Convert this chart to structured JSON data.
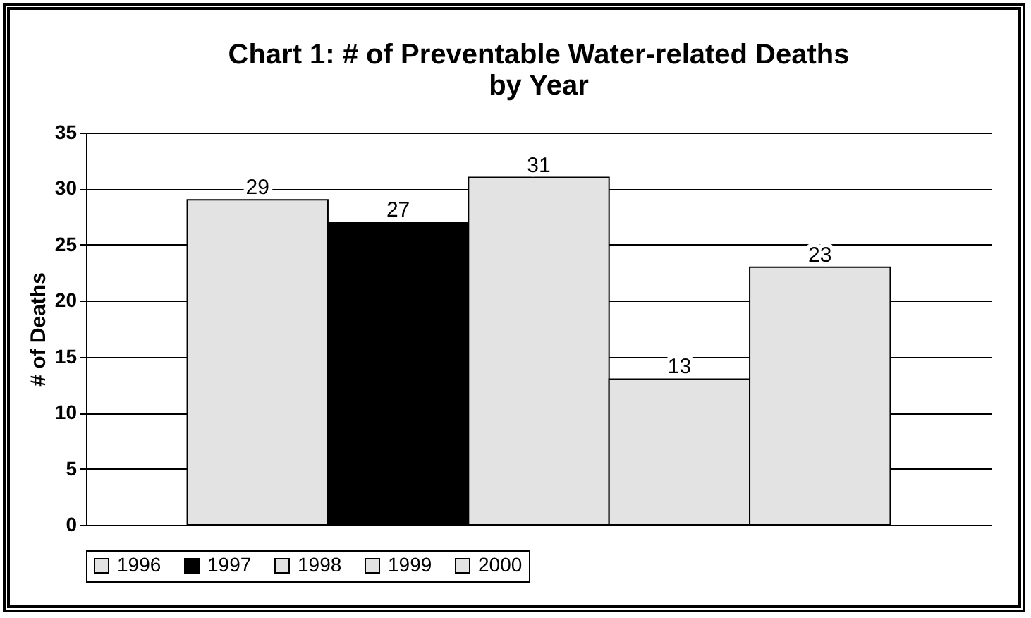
{
  "chart_data": {
    "type": "bar",
    "title": "Chart 1: # of Preventable Water-related Deaths by Year",
    "ylabel": "# of Deaths",
    "categories": [
      null
    ],
    "series": [
      {
        "name": "1996",
        "color": "#e3e3e3",
        "values": [
          29
        ]
      },
      {
        "name": "1997",
        "color": "#000000",
        "values": [
          27
        ]
      },
      {
        "name": "1998",
        "color": "#e3e3e3",
        "values": [
          31
        ]
      },
      {
        "name": "1999",
        "color": "#e3e3e3",
        "values": [
          13
        ]
      },
      {
        "name": "2000",
        "color": "#e3e3e3",
        "values": [
          23
        ]
      }
    ],
    "ylim": [
      0,
      35
    ],
    "yticks": [
      0,
      5,
      10,
      15,
      20,
      25,
      30,
      35
    ],
    "grid": "y",
    "legend": "bottom",
    "data_labels": true
  }
}
